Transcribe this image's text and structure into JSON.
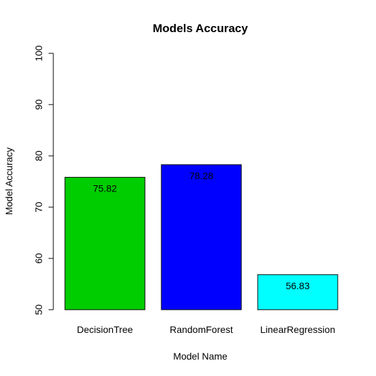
{
  "chart_data": {
    "type": "bar",
    "title": "Models Accuracy",
    "xlabel": "Model Name",
    "ylabel": "Model Accuracy",
    "categories": [
      "DecisionTree",
      "RandomForest",
      "LinearRegression"
    ],
    "values": [
      75.82,
      78.28,
      56.83
    ],
    "data_labels": [
      "75.82",
      "78.28",
      "56.83"
    ],
    "colors": [
      "#00CD00",
      "#0000FF",
      "#00FFFF"
    ],
    "ylim": [
      50,
      100
    ],
    "yticks": [
      50,
      60,
      70,
      80,
      90,
      100
    ],
    "ytick_labels": [
      "50",
      "60",
      "70",
      "80",
      "90",
      "100"
    ],
    "grid": false,
    "legend": "none"
  }
}
